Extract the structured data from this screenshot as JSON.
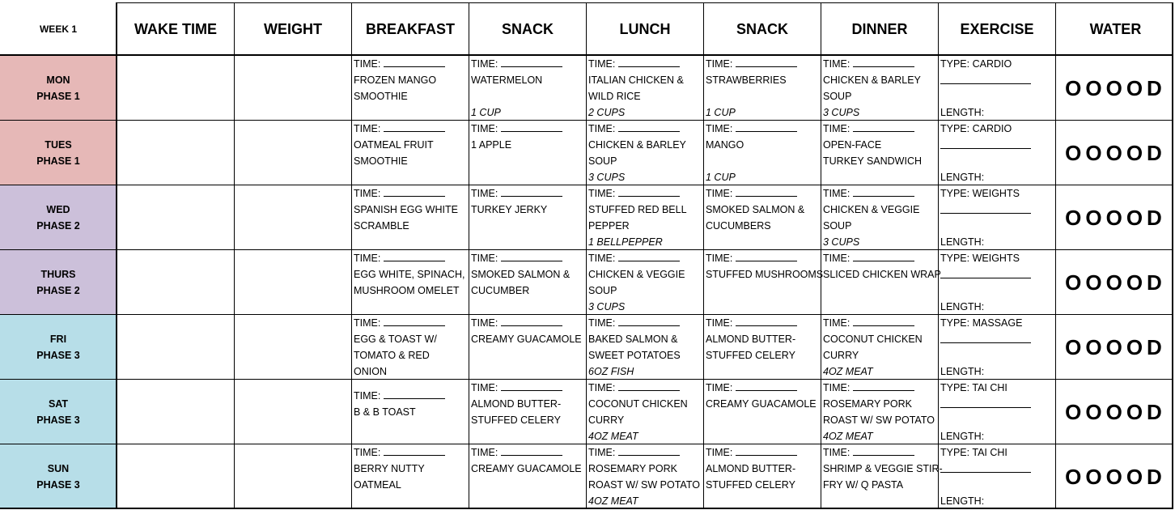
{
  "headers": {
    "week": "WEEK 1",
    "wake_time": "WAKE TIME",
    "weight": "WEIGHT",
    "breakfast": "BREAKFAST",
    "snack1": "SNACK",
    "lunch": "LUNCH",
    "snack2": "SNACK",
    "dinner": "DINNER",
    "exercise": "EXERCISE",
    "water": "WATER"
  },
  "labels": {
    "time": "TIME:",
    "length": "LENGTH:"
  },
  "colors": {
    "phase1": "#e6b8b7",
    "phase2": "#ccc0da",
    "phase3": "#b7dee8"
  },
  "rows": [
    {
      "day": "MON",
      "phase": "PHASE 1",
      "color_key": "phase1",
      "breakfast": {
        "lines": [
          "FROZEN MANGO",
          "SMOOTHIE"
        ],
        "amount": ""
      },
      "snack1": {
        "lines": [
          "WATERMELON",
          ""
        ],
        "amount": "1 CUP"
      },
      "lunch": {
        "lines": [
          "ITALIAN CHICKEN &",
          "WILD RICE"
        ],
        "amount": "2 CUPS"
      },
      "snack2": {
        "lines": [
          "STRAWBERRIES",
          ""
        ],
        "amount": "1 CUP"
      },
      "dinner": {
        "lines": [
          "CHICKEN & BARLEY",
          "SOUP"
        ],
        "amount": "3 CUPS"
      },
      "exercise": "TYPE: CARDIO",
      "water": "OOOOD"
    },
    {
      "day": "TUES",
      "phase": "PHASE 1",
      "color_key": "phase1",
      "breakfast": {
        "lines": [
          "OATMEAL FRUIT",
          "SMOOTHIE"
        ],
        "amount": ""
      },
      "snack1": {
        "lines": [
          "1 APPLE",
          ""
        ],
        "amount": ""
      },
      "lunch": {
        "lines": [
          "CHICKEN & BARLEY",
          "SOUP"
        ],
        "amount": "3 CUPS"
      },
      "snack2": {
        "lines": [
          "MANGO",
          ""
        ],
        "amount": "1 CUP"
      },
      "dinner": {
        "lines": [
          "OPEN-FACE",
          "TURKEY SANDWICH"
        ],
        "amount": ""
      },
      "exercise": "TYPE: CARDIO",
      "water": "OOOOD"
    },
    {
      "day": "WED",
      "phase": "PHASE 2",
      "color_key": "phase2",
      "breakfast": {
        "lines": [
          "SPANISH EGG WHITE",
          "SCRAMBLE"
        ],
        "amount": ""
      },
      "snack1": {
        "lines": [
          "TURKEY JERKY",
          ""
        ],
        "amount": ""
      },
      "lunch": {
        "lines": [
          "STUFFED RED BELL",
          "PEPPER"
        ],
        "amount": "1 BELLPEPPER"
      },
      "snack2": {
        "lines": [
          "SMOKED SALMON &",
          "CUCUMBERS"
        ],
        "amount": ""
      },
      "dinner": {
        "lines": [
          "CHICKEN & VEGGIE",
          "SOUP"
        ],
        "amount": "3 CUPS"
      },
      "exercise": "TYPE: WEIGHTS",
      "water": "OOOOD"
    },
    {
      "day": "THURS",
      "phase": "PHASE 2",
      "color_key": "phase2",
      "breakfast": {
        "lines": [
          "EGG WHITE, SPINACH,",
          "MUSHROOM OMELET"
        ],
        "amount": ""
      },
      "snack1": {
        "lines": [
          "SMOKED SALMON &",
          "CUCUMBER"
        ],
        "amount": ""
      },
      "lunch": {
        "lines": [
          "CHICKEN & VEGGIE",
          "SOUP"
        ],
        "amount": "3 CUPS"
      },
      "snack2": {
        "lines": [
          "STUFFED MUSHROOMS",
          ""
        ],
        "amount": ""
      },
      "dinner": {
        "lines": [
          "SLICED CHICKEN WRAP",
          ""
        ],
        "amount": ""
      },
      "exercise": "TYPE: WEIGHTS",
      "water": "OOOOD"
    },
    {
      "day": "FRI",
      "phase": "PHASE 3",
      "color_key": "phase3",
      "breakfast": {
        "lines": [
          "EGG & TOAST W/",
          "TOMATO & RED",
          "ONION"
        ],
        "amount": ""
      },
      "snack1": {
        "lines": [
          "CREAMY GUACAMOLE",
          ""
        ],
        "amount": ""
      },
      "lunch": {
        "lines": [
          "BAKED SALMON &",
          "SWEET POTATOES"
        ],
        "amount": "6OZ FISH"
      },
      "snack2": {
        "lines": [
          "ALMOND BUTTER-",
          "STUFFED CELERY"
        ],
        "amount": ""
      },
      "dinner": {
        "lines": [
          "COCONUT CHICKEN",
          "CURRY"
        ],
        "amount": "4OZ MEAT"
      },
      "exercise": "TYPE: MASSAGE",
      "water": "OOOOD"
    },
    {
      "day": "SAT",
      "phase": "PHASE 3",
      "color_key": "phase3",
      "breakfast": {
        "lines": [
          "B & B TOAST",
          ""
        ],
        "amount": "",
        "offset": true
      },
      "snack1": {
        "lines": [
          "ALMOND BUTTER-",
          "STUFFED CELERY"
        ],
        "amount": ""
      },
      "lunch": {
        "lines": [
          "COCONUT CHICKEN",
          "CURRY"
        ],
        "amount": "4OZ MEAT"
      },
      "snack2": {
        "lines": [
          "CREAMY GUACAMOLE",
          ""
        ],
        "amount": ""
      },
      "dinner": {
        "lines": [
          "ROSEMARY PORK",
          "ROAST W/ SW POTATO"
        ],
        "amount": "4OZ MEAT"
      },
      "exercise": "TYPE: TAI CHI",
      "water": "OOOOD"
    },
    {
      "day": "SUN",
      "phase": "PHASE 3",
      "color_key": "phase3",
      "breakfast": {
        "lines": [
          "BERRY NUTTY",
          "OATMEAL"
        ],
        "amount": ""
      },
      "snack1": {
        "lines": [
          "CREAMY GUACAMOLE",
          ""
        ],
        "amount": ""
      },
      "lunch": {
        "lines": [
          "ROSEMARY PORK",
          "ROAST W/ SW POTATO"
        ],
        "amount": "4OZ MEAT"
      },
      "snack2": {
        "lines": [
          "ALMOND BUTTER-",
          "STUFFED CELERY"
        ],
        "amount": ""
      },
      "dinner": {
        "lines": [
          "SHRIMP & VEGGIE STIR-",
          "FRY W/ Q PASTA"
        ],
        "amount": ""
      },
      "exercise": "TYPE: TAI CHI",
      "water": "OOOOD"
    }
  ]
}
